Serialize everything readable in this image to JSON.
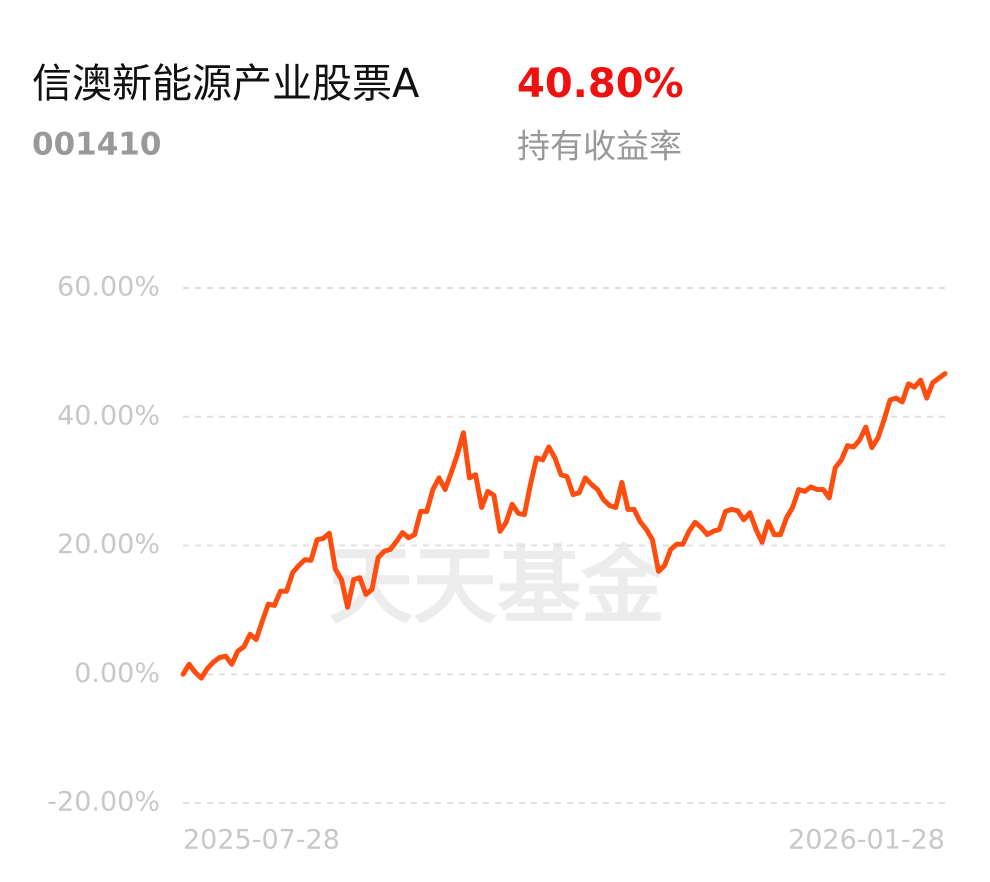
{
  "header": {
    "fund_name": "信澳新能源产业股票A",
    "fund_code": "001410",
    "return_value": "40.80%",
    "return_label": "持有收益率"
  },
  "chart_data": {
    "type": "line",
    "watermark": "天天基金",
    "categories": [
      "2025-07-28",
      null,
      null,
      null,
      null,
      null,
      null,
      null,
      null,
      null,
      null,
      null,
      null,
      null,
      null,
      null,
      null,
      null,
      null,
      null,
      null,
      null,
      null,
      null,
      null,
      null,
      null,
      null,
      null,
      null,
      null,
      null,
      null,
      null,
      null,
      null,
      null,
      null,
      null,
      null,
      null,
      null,
      null,
      null,
      null,
      null,
      null,
      null,
      null,
      null,
      null,
      null,
      null,
      null,
      null,
      null,
      null,
      null,
      null,
      null,
      null,
      null,
      null,
      null,
      null,
      null,
      null,
      null,
      null,
      null,
      null,
      null,
      null,
      null,
      null,
      null,
      null,
      null,
      null,
      null,
      null,
      null,
      null,
      null,
      null,
      null,
      null,
      null,
      null,
      null,
      null,
      null,
      null,
      null,
      null,
      null,
      null,
      null,
      null,
      null,
      null,
      null,
      null,
      null,
      null,
      null,
      null,
      null,
      null,
      null,
      null,
      null,
      null,
      null,
      null,
      null,
      null,
      null,
      null,
      null,
      null,
      null,
      null,
      null,
      null,
      "2026-01-28"
    ],
    "series": [
      {
        "color": "#ff4d0f",
        "values": [
          0,
          1.55,
          0.3,
          -0.6,
          0.9,
          1.9,
          2.6,
          2.8,
          1.55,
          3.6,
          4.3,
          6.2,
          5.4,
          8.2,
          10.9,
          10.7,
          12.9,
          12.9,
          15.8,
          16.9,
          17.8,
          17.7,
          20.9,
          21.1,
          21.9,
          16.3,
          14.7,
          10.4,
          14.7,
          15.0,
          12.4,
          13.2,
          18.1,
          19.1,
          19.4,
          20.6,
          22.0,
          21.2,
          21.7,
          25.3,
          25.3,
          28.7,
          30.5,
          28.7,
          31.3,
          34.1,
          37.5,
          30.5,
          31.0,
          25.9,
          28.4,
          27.8,
          22.2,
          23.6,
          26.4,
          25.0,
          24.8,
          29.5,
          33.6,
          33.3,
          35.3,
          33.6,
          31.0,
          30.7,
          27.9,
          28.2,
          30.5,
          29.5,
          28.7,
          27.1,
          26.2,
          25.9,
          29.8,
          25.6,
          25.6,
          23.7,
          22.5,
          20.9,
          16.0,
          16.9,
          19.4,
          20.2,
          20.2,
          22.2,
          23.6,
          22.8,
          21.7,
          22.2,
          22.5,
          25.3,
          25.6,
          25.4,
          24.0,
          25.1,
          22.5,
          20.5,
          23.7,
          21.7,
          21.7,
          24.3,
          25.9,
          28.7,
          28.4,
          29.1,
          28.7,
          28.7,
          27.4,
          32.1,
          33.3,
          35.5,
          35.3,
          36.4,
          38.4,
          35.2,
          36.7,
          39.5,
          42.6,
          42.9,
          42.3,
          45.1,
          44.6,
          45.7,
          42.9,
          45.3,
          46.0,
          46.7
        ]
      }
    ],
    "ylim": [
      -20,
      60
    ],
    "yticks": [
      {
        "value": 60,
        "label": "60.00%"
      },
      {
        "value": 40,
        "label": "40.00%"
      },
      {
        "value": 20,
        "label": "20.00%"
      },
      {
        "value": 0,
        "label": "0.00%"
      },
      {
        "value": -20,
        "label": "-20.00%"
      }
    ],
    "grid": true
  }
}
